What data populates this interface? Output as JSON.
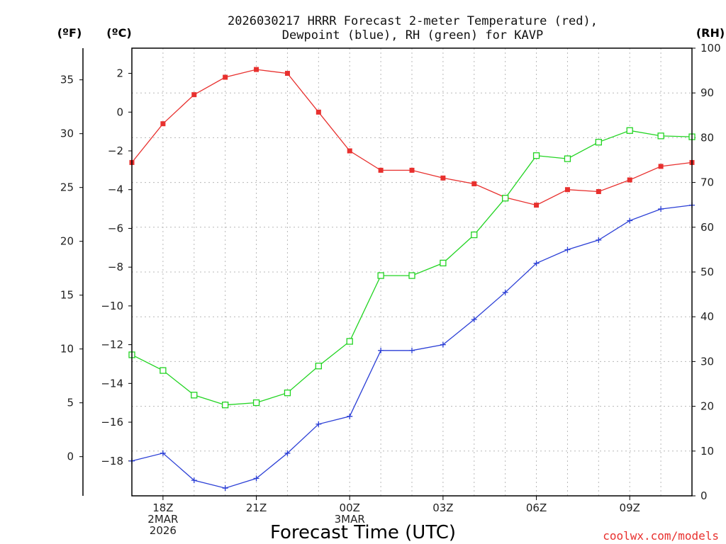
{
  "chart_data": {
    "type": "line",
    "title_line1": "2026030217 HRRR Forecast 2-meter Temperature (red),",
    "title_line2": "Dewpoint (blue), RH (green) for KAVP",
    "unit_left_f": "(ºF)",
    "unit_left_c": "(ºC)",
    "unit_right": "(RH)",
    "xlabel": "Forecast Time (UTC)",
    "credit": "coolwx.com/models",
    "x_hours": [
      0,
      1,
      2,
      3,
      4,
      5,
      6,
      7,
      8,
      9,
      10,
      11,
      12,
      13,
      14,
      15,
      16,
      17,
      18
    ],
    "x_ticks": [
      {
        "hour": 1,
        "lines": [
          "18Z",
          "2MAR",
          "2026"
        ]
      },
      {
        "hour": 4,
        "lines": [
          "21Z"
        ]
      },
      {
        "hour": 7,
        "lines": [
          "00Z",
          "3MAR"
        ]
      },
      {
        "hour": 10,
        "lines": [
          "03Z"
        ]
      },
      {
        "hour": 13,
        "lines": [
          "06Z"
        ]
      },
      {
        "hour": 16,
        "lines": [
          "09Z"
        ]
      }
    ],
    "celsius_axis": {
      "range": [
        -19.8,
        3.3
      ],
      "ticks": [
        "2",
        "0",
        "−2",
        "−4",
        "−6",
        "−8",
        "−10",
        "−12",
        "−14",
        "−16",
        "−18"
      ],
      "tick_values": [
        2,
        0,
        -2,
        -4,
        -6,
        -8,
        -10,
        -12,
        -14,
        -16,
        -18
      ]
    },
    "fahrenheit_axis": {
      "ticks": [
        "35",
        "30",
        "25",
        "20",
        "15",
        "10",
        "5",
        "0"
      ],
      "tick_values": [
        35,
        30,
        25,
        20,
        15,
        10,
        5,
        0
      ]
    },
    "rh_axis": {
      "range": [
        0,
        100
      ],
      "ticks": [
        "100",
        "90",
        "80",
        "70",
        "60",
        "50",
        "40",
        "30",
        "20",
        "10",
        "0"
      ],
      "tick_values": [
        100,
        90,
        80,
        70,
        60,
        50,
        40,
        30,
        20,
        10,
        0
      ]
    },
    "grid": true,
    "series": [
      {
        "name": "Temperature",
        "axis": "celsius",
        "color": "#e8302e",
        "marker": "filled-square",
        "values": [
          -2.6,
          -0.6,
          0.9,
          1.8,
          2.2,
          2.0,
          0.0,
          -2.0,
          -3.0,
          -3.0,
          -3.4,
          -3.7,
          -4.4,
          -4.8,
          -4.0,
          -4.1,
          -3.5,
          -2.8,
          -2.6
        ]
      },
      {
        "name": "Dewpoint",
        "axis": "celsius",
        "color": "#2b3fd6",
        "marker": "plus",
        "values": [
          -18.0,
          -17.6,
          -19.0,
          -19.4,
          -18.9,
          -17.6,
          -16.1,
          -15.7,
          -12.3,
          -12.3,
          -12.0,
          -10.7,
          -9.3,
          -7.8,
          -7.1,
          -6.6,
          -5.6,
          -5.0,
          -4.8
        ]
      },
      {
        "name": "RH",
        "axis": "rh",
        "color": "#22d422",
        "marker": "open-square",
        "values": [
          31.5,
          28.0,
          22.5,
          20.3,
          20.8,
          23.0,
          29.0,
          34.5,
          49.2,
          49.2,
          52.0,
          58.3,
          66.5,
          76.0,
          75.3,
          79.0,
          81.6,
          80.4,
          80.2
        ]
      }
    ]
  }
}
